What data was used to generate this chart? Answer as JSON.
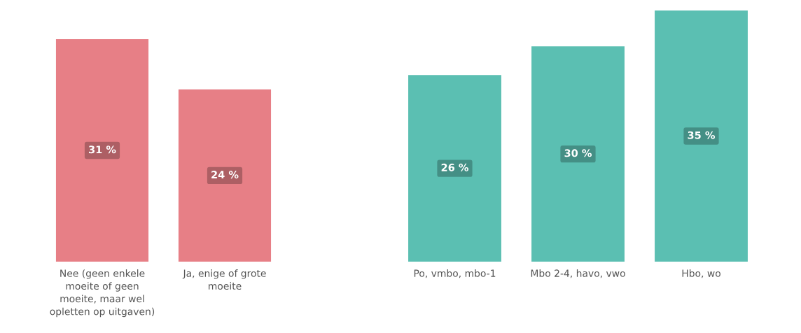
{
  "chart_data": [
    {
      "type": "bar",
      "categories": [
        "Nee (geen enkele moeite of geen moeite, maar wel opletten op uitgaven)",
        "Ja, enige of grote moeite"
      ],
      "values": [
        31,
        24
      ],
      "value_labels": [
        "31 %",
        "24 %"
      ],
      "color": "#e77f86",
      "grid": false,
      "legend": false,
      "tick_labels": "x"
    },
    {
      "type": "bar",
      "categories": [
        "Po, vmbo, mbo-1",
        "Mbo 2-4, havo, vwo",
        "Hbo, wo"
      ],
      "values": [
        26,
        30,
        35
      ],
      "value_labels": [
        "26 %",
        "30 %",
        "35 %"
      ],
      "color": "#5bbfb2",
      "grid": false,
      "legend": false,
      "tick_labels": "x"
    }
  ]
}
